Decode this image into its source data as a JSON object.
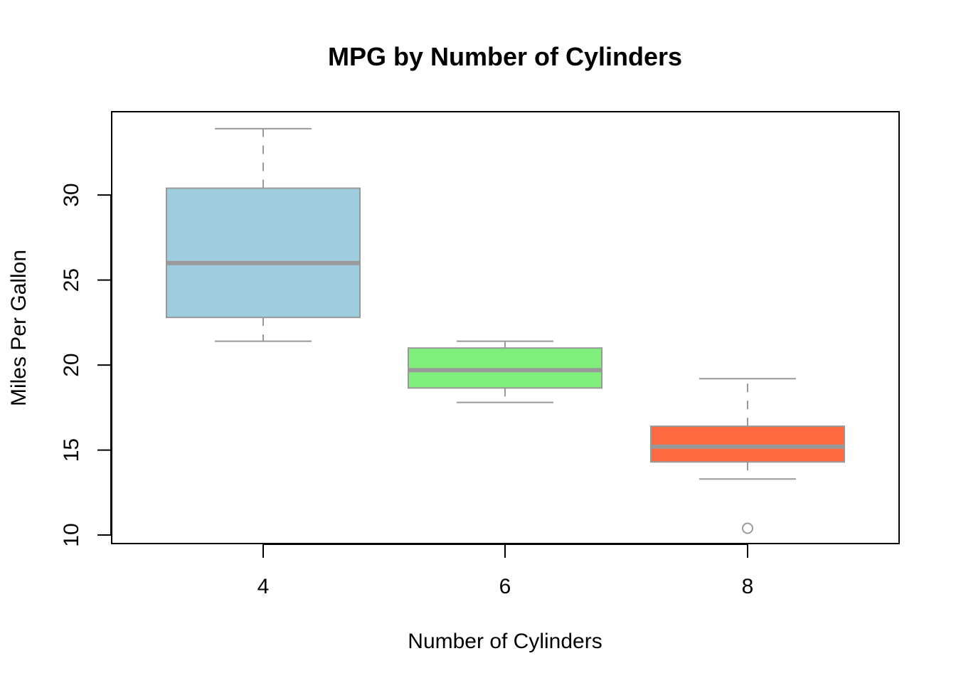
{
  "chart_data": {
    "type": "boxplot",
    "title": "MPG by Number of Cylinders",
    "xlabel": "Number of Cylinders",
    "ylabel": "Miles Per Gallon",
    "categories": [
      "4",
      "6",
      "8"
    ],
    "ylim": [
      9.5,
      34.9
    ],
    "yticks": [
      {
        "value": 10,
        "label": "10"
      },
      {
        "value": 15,
        "label": "15"
      },
      {
        "value": 20,
        "label": "20"
      },
      {
        "value": 25,
        "label": "25"
      },
      {
        "value": 30,
        "label": "30"
      }
    ],
    "boxes": [
      {
        "category": "4",
        "whisker_low": 21.4,
        "q1": 22.8,
        "median": 26.0,
        "q3": 30.4,
        "whisker_high": 33.9,
        "outliers": [],
        "fill": "#9ECDE0"
      },
      {
        "category": "6",
        "whisker_low": 17.8,
        "q1": 18.65,
        "median": 19.7,
        "q3": 21.0,
        "whisker_high": 21.4,
        "outliers": [],
        "fill": "#80EE7A"
      },
      {
        "category": "8",
        "whisker_low": 13.3,
        "q1": 14.3,
        "median": 15.2,
        "q3": 16.4,
        "whisker_high": 19.2,
        "outliers": [
          10.4
        ],
        "fill": "#FF6A40"
      }
    ],
    "grid": false,
    "legend": "none",
    "colors": {
      "box_border": "#999999",
      "median_line": "#999999",
      "whisker": "#999999",
      "axis": "#000000"
    }
  }
}
